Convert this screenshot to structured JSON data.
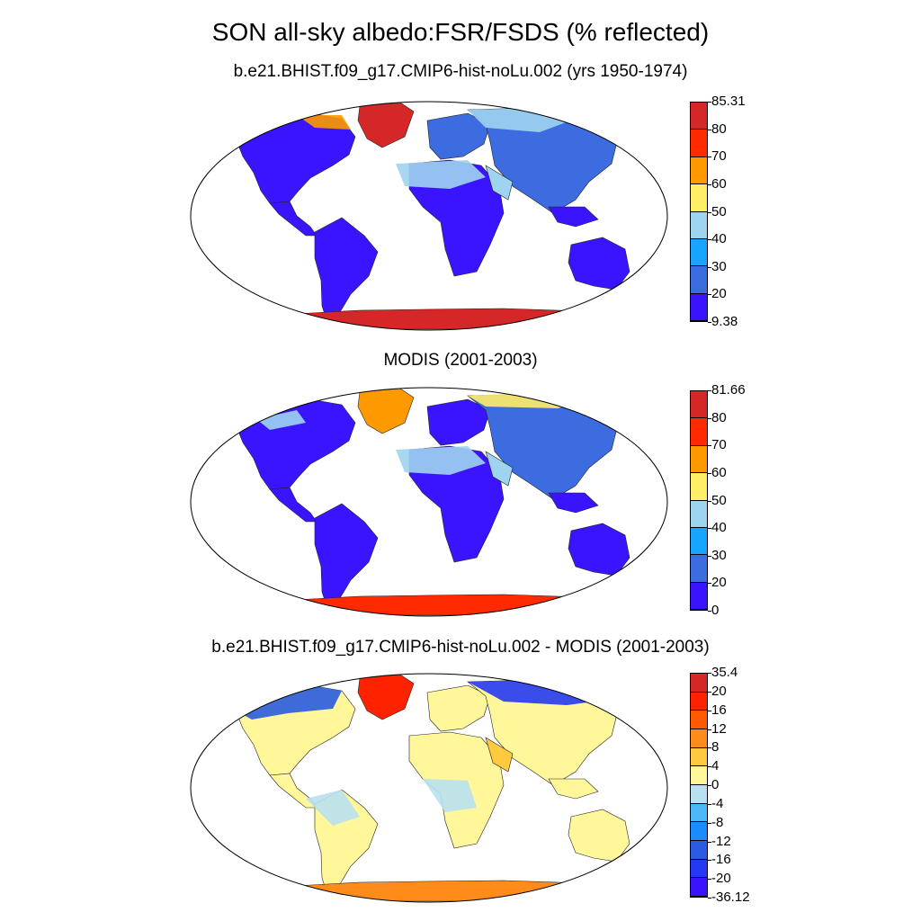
{
  "title": "SON all-sky albedo:FSR/FSDS (% reflected)",
  "panels": [
    {
      "id": "model",
      "subtitle": "b.e21.BHIST.f09_g17.CMIP6-hist-noLu.002 (yrs 1950-1974)",
      "colorbar": {
        "labels": [
          "85.31",
          "80",
          "70",
          "60",
          "50",
          "40",
          "30",
          "20",
          "9.38"
        ],
        "colors": [
          "#d62728",
          "#ff2a00",
          "#ff9900",
          "#ffee66",
          "#9ed4f0",
          "#17a6ff",
          "#3d6be0",
          "#3b14ff"
        ]
      }
    },
    {
      "id": "obs",
      "subtitle": "MODIS (2001-2003)",
      "colorbar": {
        "labels": [
          "81.66",
          "80",
          "70",
          "60",
          "50",
          "40",
          "30",
          "20",
          "0"
        ],
        "colors": [
          "#d62728",
          "#ff2a00",
          "#ff9900",
          "#ffee66",
          "#9ed4f0",
          "#17a6ff",
          "#3d6be0",
          "#3b14ff"
        ]
      }
    },
    {
      "id": "diff",
      "subtitle": "b.e21.BHIST.f09_g17.CMIP6-hist-noLu.002 - MODIS (2001-2003)",
      "colorbar": {
        "labels": [
          "35.4",
          "20",
          "16",
          "12",
          "8",
          "4",
          "0",
          "-4",
          "-8",
          "-12",
          "-16",
          "-20",
          "-36.12"
        ],
        "colors": [
          "#d62728",
          "#ff2200",
          "#ff5a00",
          "#ff8c1a",
          "#ffc940",
          "#fff799",
          "#b8e0f0",
          "#4cb8f5",
          "#1a8cff",
          "#2a5be0",
          "#2538f2",
          "#3b14ff"
        ]
      }
    }
  ]
}
